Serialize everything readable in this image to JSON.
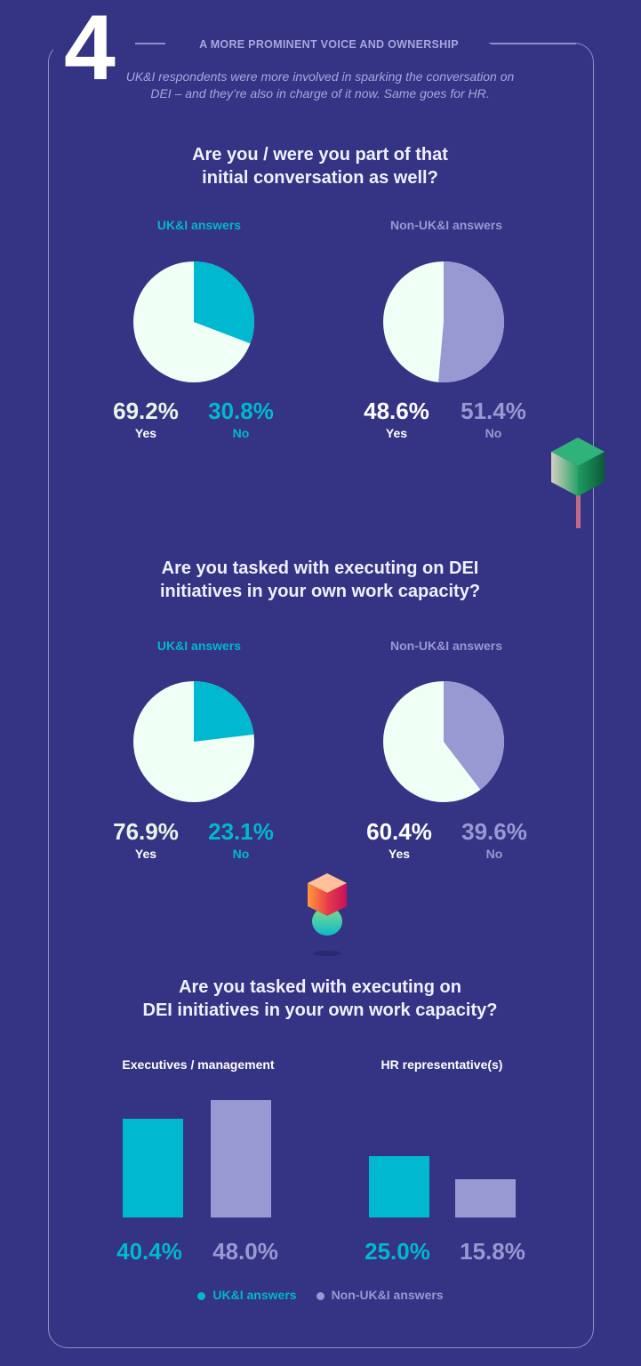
{
  "header": {
    "number": "4",
    "kicker": "A MORE PROMINENT VOICE AND OWNERSHIP",
    "intro": "UK&I respondents were more involved in sparking the conversation on DEI – and they’re also in charge of it now. Same goes for HR."
  },
  "colors": {
    "background": "#353384",
    "uki": "#00b8cf",
    "non_uki": "#9898d2",
    "yes": "#f0fff6"
  },
  "chart_data": [
    {
      "type": "pie",
      "title": "Are you / were you part of that initial conversation as well?",
      "title_lines": [
        "Are you / were you part of that",
        "initial conversation as well?"
      ],
      "pies": [
        {
          "name": "UK&I answers",
          "slices": [
            {
              "label": "Yes",
              "value": 69.2,
              "display": "69.2%"
            },
            {
              "label": "No",
              "value": 30.8,
              "display": "30.8%"
            }
          ]
        },
        {
          "name": "Non-UK&I answers",
          "slices": [
            {
              "label": "Yes",
              "value": 48.6,
              "display": "48.6%"
            },
            {
              "label": "No",
              "value": 51.4,
              "display": "51.4%"
            }
          ]
        }
      ]
    },
    {
      "type": "pie",
      "title": "Are you tasked with executing on DEI initiatives in your own work capacity?",
      "title_lines": [
        "Are you tasked with executing on DEI",
        "initiatives in your own work capacity?"
      ],
      "pies": [
        {
          "name": "UK&I answers",
          "slices": [
            {
              "label": "Yes",
              "value": 76.9,
              "display": "76.9%"
            },
            {
              "label": "No",
              "value": 23.1,
              "display": "23.1%"
            }
          ]
        },
        {
          "name": "Non-UK&I answers",
          "slices": [
            {
              "label": "Yes",
              "value": 60.4,
              "display": "60.4%"
            },
            {
              "label": "No",
              "value": 39.6,
              "display": "39.6%"
            }
          ]
        }
      ]
    },
    {
      "type": "bar",
      "title": "Are you tasked with executing on DEI initiatives in your own work capacity?",
      "title_lines": [
        "Are you tasked with executing on",
        "DEI initiatives in your own work capacity?"
      ],
      "categories": [
        "Executives / management",
        "HR representative(s)"
      ],
      "series": [
        {
          "name": "UK&I answers",
          "values": [
            40.4,
            25.0
          ],
          "display": [
            "40.4%",
            "25.0%"
          ]
        },
        {
          "name": "Non-UK&I answers",
          "values": [
            48.0,
            15.8
          ],
          "display": [
            "48.0%",
            "15.8%"
          ]
        }
      ],
      "legend": "bottom-center",
      "grid": false
    }
  ]
}
